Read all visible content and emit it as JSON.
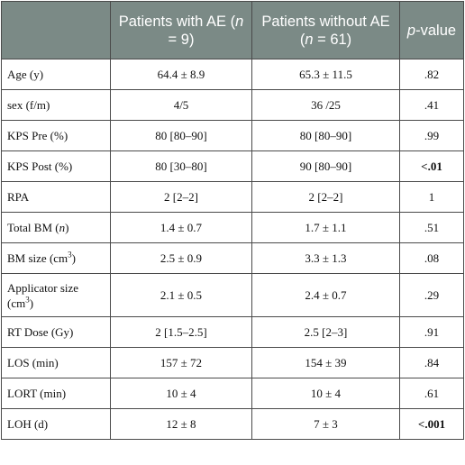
{
  "header": {
    "col1": "",
    "col2_a": "Patients with AE (",
    "col2_n": "n",
    "col2_b": " = 9)",
    "col3_a": "Patients without AE (",
    "col3_n": "n",
    "col3_b": " = 61)",
    "col4_p": "p",
    "col4_b": "-value"
  },
  "rows": [
    {
      "label": "Age (y)",
      "with_ae": "64.4 ± 8.9",
      "without_ae": "65.3 ± 11.5",
      "p": ".82"
    },
    {
      "label": "sex (f/m)",
      "with_ae": "4/5",
      "without_ae": "36 /25",
      "p": ".41"
    },
    {
      "label": "KPS Pre (%)",
      "with_ae": "80 [80–90]",
      "without_ae": "80 [80–90]",
      "p": ".99"
    },
    {
      "label": "KPS Post (%)",
      "with_ae": "80 [30–80]",
      "without_ae": "90 [80–90]",
      "p": "<.01"
    },
    {
      "label": "RPA",
      "with_ae": "2 [2–2]",
      "without_ae": "2 [2–2]",
      "p": "1"
    },
    {
      "label_a": "Total BM (",
      "label_i": "n",
      "label_b": ")",
      "with_ae": "1.4 ± 0.7",
      "without_ae": "1.7 ± 1.1",
      "p": ".51"
    },
    {
      "label_a": "BM size (cm",
      "label_sup": "3",
      "label_b": ")",
      "with_ae": "2.5 ± 0.9",
      "without_ae": "3.3 ± 1.3",
      "p": ".08"
    },
    {
      "label_a": "Applicator size (cm",
      "label_sup": "3",
      "label_b": ")",
      "with_ae": "2.1 ± 0.5",
      "without_ae": "2.4 ± 0.7",
      "p": ".29"
    },
    {
      "label": "RT Dose (Gy)",
      "with_ae": "2 [1.5–2.5]",
      "without_ae": "2.5 [2–3]",
      "p": ".91"
    },
    {
      "label": "LOS (min)",
      "with_ae": "157 ± 72",
      "without_ae": "154 ± 39",
      "p": ".84"
    },
    {
      "label": "LORT (min)",
      "with_ae": "10 ± 4",
      "without_ae": "10 ± 4",
      "p": ".61"
    },
    {
      "label": "LOH (d)",
      "with_ae": "12 ± 8",
      "without_ae": "7 ± 3",
      "p": "<.001"
    }
  ],
  "colors": {
    "header_bg": "#7b8a86",
    "header_text": "#ffffff",
    "border": "#4a4a4a"
  }
}
